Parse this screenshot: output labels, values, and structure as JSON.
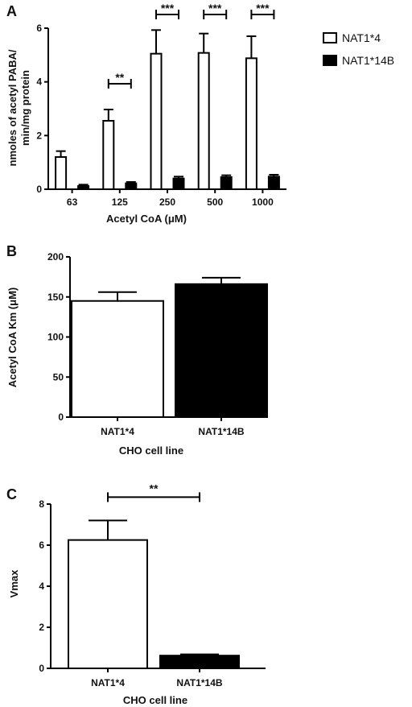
{
  "chart_data": [
    {
      "panel": "A",
      "type": "bar",
      "categories": [
        "63",
        "125",
        "250",
        "500",
        "1000"
      ],
      "series": [
        {
          "name": "NAT1*4",
          "values": [
            1.2,
            2.55,
            5.05,
            5.08,
            4.88
          ],
          "errors": [
            0.22,
            0.42,
            0.88,
            0.72,
            0.82
          ],
          "fill": "#ffffff"
        },
        {
          "name": "NAT1*14B",
          "values": [
            0.12,
            0.22,
            0.4,
            0.45,
            0.47
          ],
          "errors": [
            0.05,
            0.05,
            0.07,
            0.07,
            0.07
          ],
          "fill": "#000000"
        }
      ],
      "significance": [
        {
          "category": "125",
          "label": "**"
        },
        {
          "category": "250",
          "label": "***"
        },
        {
          "category": "500",
          "label": "***"
        },
        {
          "category": "1000",
          "label": "***"
        }
      ],
      "xlabel": "Acetyl CoA (μM)",
      "ylabel_line1": "nmoles of acetyl PABA/",
      "ylabel_line2": "min/mg protein",
      "ylim": [
        0,
        6
      ],
      "yticks": [
        "0",
        "2",
        "4",
        "6"
      ],
      "legend_position": "top-right"
    },
    {
      "panel": "B",
      "type": "bar",
      "categories": [
        "NAT1*4",
        "NAT1*14B"
      ],
      "values": [
        145,
        166
      ],
      "errors": [
        11,
        8
      ],
      "fills": [
        "#ffffff",
        "#000000"
      ],
      "xlabel": "CHO cell line",
      "ylabel": "Acetyl CoA Km (μM)",
      "ylim": [
        0,
        200
      ],
      "yticks": [
        "0",
        "50",
        "100",
        "150",
        "200"
      ]
    },
    {
      "panel": "C",
      "type": "bar",
      "categories": [
        "NAT1*4",
        "NAT1*14B"
      ],
      "values": [
        6.25,
        0.62
      ],
      "errors": [
        0.95,
        0.06
      ],
      "fills": [
        "#ffffff",
        "#000000"
      ],
      "significance": [
        {
          "between": [
            "NAT1*4",
            "NAT1*14B"
          ],
          "label": "**"
        }
      ],
      "xlabel": "CHO cell line",
      "ylabel": "Vmax",
      "ylim": [
        0,
        8
      ],
      "yticks": [
        "0",
        "2",
        "4",
        "6",
        "8"
      ]
    }
  ]
}
